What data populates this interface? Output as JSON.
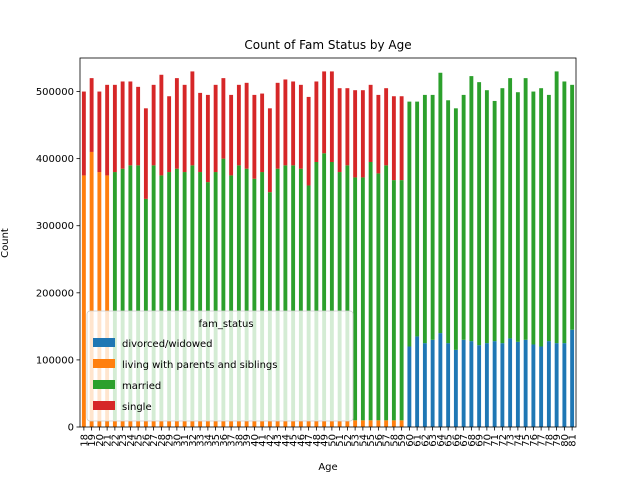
{
  "chart_data": {
    "type": "bar",
    "stacked": true,
    "title": "Count of Fam Status by Age",
    "xlabel": "Age",
    "ylabel": "Count",
    "ylim": [
      0,
      550000
    ],
    "yticks": [
      0,
      100000,
      200000,
      300000,
      400000,
      500000
    ],
    "ytick_labels": [
      "0",
      "100000",
      "200000",
      "300000",
      "400000",
      "500000"
    ],
    "legend_title": "fam_status",
    "legend_position": "lower-left",
    "grid": false,
    "categories": [
      "18",
      "19",
      "20",
      "21",
      "22",
      "23",
      "24",
      "25",
      "26",
      "27",
      "28",
      "29",
      "30",
      "31",
      "32",
      "33",
      "34",
      "35",
      "36",
      "37",
      "38",
      "39",
      "40",
      "41",
      "42",
      "43",
      "44",
      "45",
      "46",
      "47",
      "48",
      "49",
      "50",
      "51",
      "52",
      "53",
      "54",
      "55",
      "56",
      "57",
      "58",
      "59",
      "60",
      "61",
      "62",
      "63",
      "64",
      "65",
      "66",
      "67",
      "68",
      "69",
      "70",
      "71",
      "72",
      "73",
      "74",
      "75",
      "76",
      "77",
      "78",
      "79",
      "80",
      "81"
    ],
    "series": [
      {
        "name": "divorced/widowed",
        "color": "#1f77b4",
        "values": [
          0,
          0,
          0,
          0,
          0,
          0,
          0,
          0,
          0,
          0,
          0,
          0,
          0,
          0,
          0,
          0,
          0,
          0,
          0,
          0,
          0,
          0,
          0,
          0,
          0,
          0,
          0,
          0,
          0,
          0,
          0,
          0,
          0,
          0,
          0,
          0,
          0,
          0,
          0,
          0,
          0,
          0,
          120000,
          135000,
          125000,
          130000,
          140000,
          125000,
          115000,
          130000,
          128000,
          122000,
          125000,
          128000,
          125000,
          132000,
          127000,
          130000,
          123000,
          120000,
          128000,
          125000,
          125000,
          145000
        ]
      },
      {
        "name": "living with parents and siblings",
        "color": "#ff7f0e",
        "values": [
          375000,
          410000,
          380000,
          375000,
          10000,
          10000,
          10000,
          10000,
          10000,
          10000,
          10000,
          10000,
          10000,
          10000,
          10000,
          10000,
          10000,
          10000,
          10000,
          10000,
          10000,
          10000,
          10000,
          10000,
          10000,
          10000,
          10000,
          10000,
          10000,
          10000,
          10000,
          10000,
          10000,
          10000,
          10000,
          10000,
          10000,
          10000,
          10000,
          10000,
          10000,
          10000,
          0,
          0,
          0,
          0,
          0,
          0,
          0,
          0,
          0,
          0,
          0,
          0,
          0,
          0,
          0,
          0,
          0,
          0,
          0,
          0,
          0,
          0
        ]
      },
      {
        "name": "married",
        "color": "#2ca02c",
        "values": [
          0,
          0,
          0,
          0,
          370000,
          375000,
          380000,
          380000,
          330000,
          380000,
          365000,
          370000,
          375000,
          370000,
          380000,
          370000,
          355000,
          370000,
          390000,
          365000,
          380000,
          375000,
          360000,
          370000,
          340000,
          375000,
          380000,
          380000,
          375000,
          350000,
          385000,
          398000,
          385000,
          370000,
          380000,
          362000,
          362000,
          385000,
          368000,
          380000,
          358000,
          358000,
          365000,
          350000,
          370000,
          365000,
          388000,
          362000,
          360000,
          365000,
          395000,
          392000,
          377000,
          358000,
          380000,
          388000,
          372000,
          390000,
          377000,
          385000,
          367000,
          405000,
          390000,
          365000
        ]
      },
      {
        "name": "single",
        "color": "#d62728",
        "values": [
          125000,
          110000,
          120000,
          135000,
          130000,
          130000,
          125000,
          117000,
          135000,
          120000,
          150000,
          113000,
          135000,
          130000,
          140000,
          118000,
          130000,
          130000,
          120000,
          120000,
          120000,
          128000,
          125000,
          117000,
          125000,
          128000,
          128000,
          125000,
          125000,
          132000,
          120000,
          122000,
          135000,
          125000,
          115000,
          130000,
          130000,
          115000,
          117000,
          115000,
          125000,
          125000,
          0,
          0,
          0,
          0,
          0,
          0,
          0,
          0,
          0,
          0,
          0,
          0,
          0,
          0,
          0,
          0,
          0,
          0,
          0,
          0,
          0,
          0
        ]
      }
    ]
  }
}
